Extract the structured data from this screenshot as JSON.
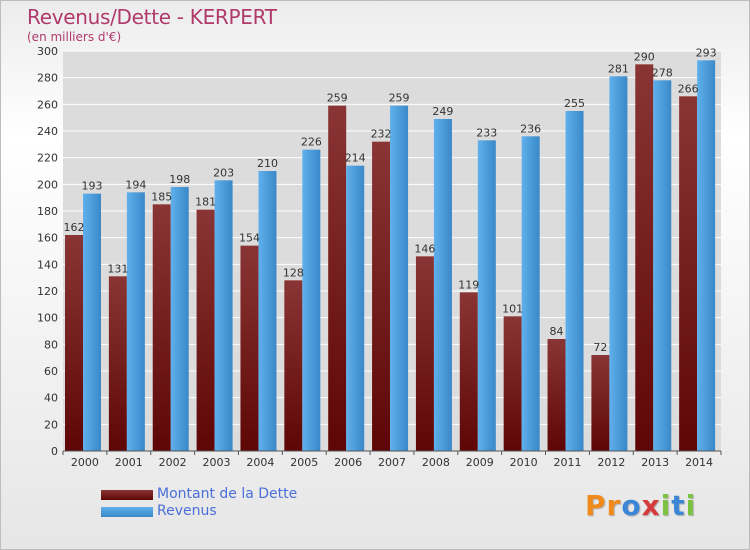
{
  "title": "Revenus/Dette - KERPERT",
  "subtitle": "(en milliers d'€)",
  "logo": {
    "letters": [
      "P",
      "r",
      "o",
      "x",
      "i",
      "t",
      "i"
    ],
    "colors": [
      "#f08a1c",
      "#f08a1c",
      "#3b86d6",
      "#d63b3b",
      "#7cc242",
      "#3b86d6",
      "#7cc242"
    ]
  },
  "colors": {
    "dette_dark": "#5e0606",
    "dette_light": "#8a3535",
    "revenus_dark": "#3a88c8",
    "revenus_light": "#5fb0ec",
    "axis_text": "#333333",
    "grid": "#ffffff"
  },
  "chart_data": {
    "type": "bar",
    "categories": [
      "2000",
      "2001",
      "2002",
      "2003",
      "2004",
      "2005",
      "2006",
      "2007",
      "2008",
      "2009",
      "2010",
      "2011",
      "2012",
      "2013",
      "2014"
    ],
    "series": [
      {
        "name": "Montant de la Dette",
        "values": [
          162,
          131,
          185,
          181,
          154,
          128,
          259,
          232,
          146,
          119,
          101,
          84,
          72,
          290,
          266
        ]
      },
      {
        "name": "Revenus",
        "values": [
          193,
          194,
          198,
          203,
          210,
          226,
          214,
          259,
          249,
          233,
          236,
          255,
          281,
          278,
          293
        ]
      }
    ],
    "ylim": [
      0,
      300
    ],
    "yticks": [
      0,
      20,
      40,
      60,
      80,
      100,
      120,
      140,
      160,
      180,
      200,
      220,
      240,
      260,
      280,
      300
    ],
    "grid": true,
    "legend_placement": "bottom-left"
  }
}
